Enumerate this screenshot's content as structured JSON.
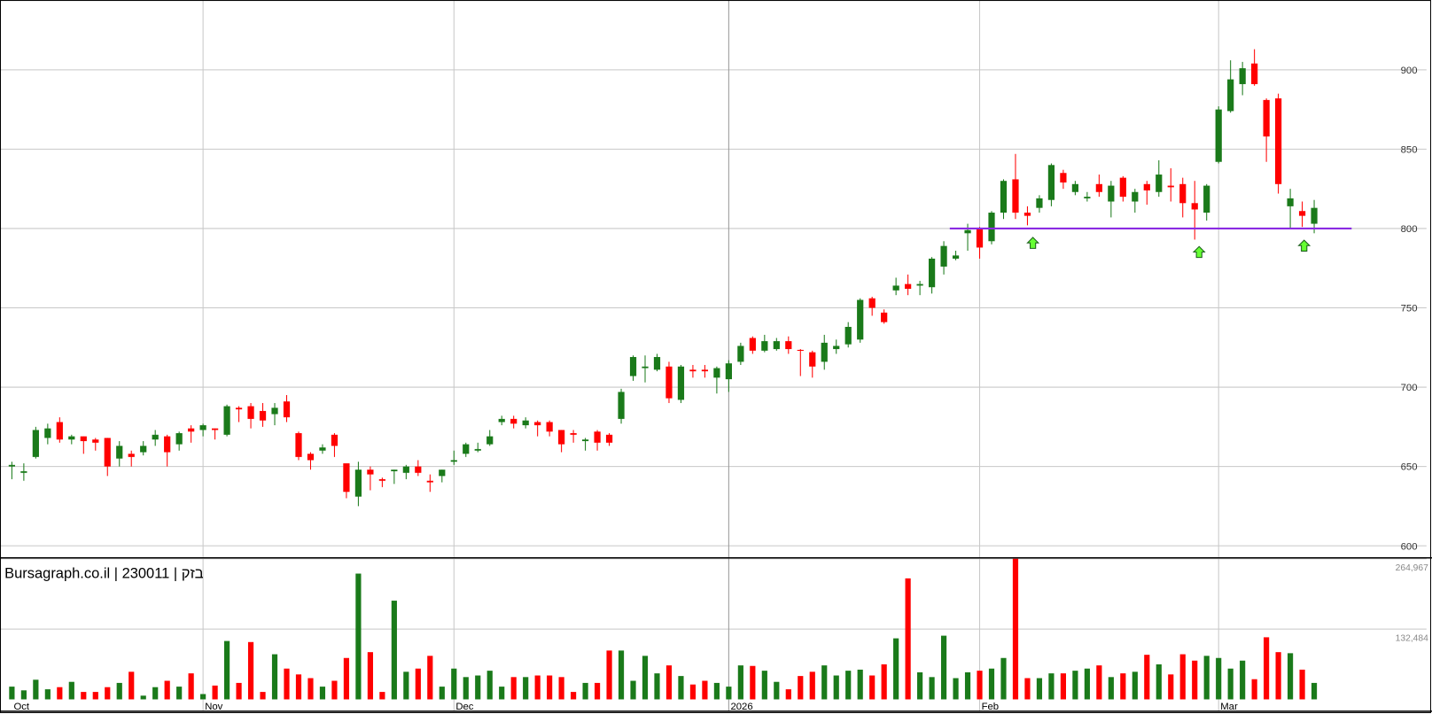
{
  "chart_data": [
    {
      "type": "candlestick",
      "categories": [
        "Oct",
        null,
        null,
        null,
        null,
        null,
        null,
        null,
        null,
        null,
        null,
        null,
        null,
        null,
        null,
        null,
        "Nov",
        null,
        null,
        null,
        null,
        null,
        null,
        null,
        null,
        null,
        null,
        null,
        null,
        null,
        null,
        null,
        null,
        null,
        null,
        null,
        null,
        "Dec",
        null,
        null,
        null,
        null,
        null,
        null,
        null,
        null,
        null,
        null,
        null,
        null,
        null,
        null,
        null,
        null,
        null,
        null,
        null,
        null,
        null,
        null,
        "2026",
        null,
        null,
        null,
        null,
        null,
        null,
        null,
        null,
        null,
        null,
        null,
        null,
        null,
        null,
        null,
        null,
        null,
        null,
        null,
        null,
        "Feb",
        null,
        null,
        null,
        null,
        null,
        null,
        null,
        null,
        null,
        null,
        null,
        null,
        null,
        null,
        null,
        null,
        null,
        null,
        null,
        "Mar",
        null,
        null,
        null,
        null,
        null,
        null,
        null,
        null
      ],
      "open": [
        650,
        646,
        656,
        668,
        678,
        667,
        669,
        667,
        668,
        655,
        658,
        659,
        667,
        669,
        664,
        674,
        673,
        674,
        670,
        687,
        688,
        685,
        683,
        691,
        671,
        658,
        660,
        670,
        652,
        631,
        648,
        642,
        647,
        646,
        650,
        641,
        644,
        653,
        658,
        660,
        664,
        678,
        680,
        676,
        678,
        678,
        673,
        671,
        666,
        672,
        670,
        680,
        707,
        712,
        711,
        713,
        692,
        711,
        711,
        706,
        705,
        716,
        731,
        723,
        724,
        729,
        723.5,
        722,
        716,
        724,
        727,
        730,
        756,
        747,
        761,
        765,
        764,
        763,
        776,
        781,
        797,
        800,
        792,
        810,
        831,
        810,
        813,
        818,
        835,
        823,
        819,
        828,
        817,
        832,
        817,
        828,
        823,
        827,
        828,
        816,
        810,
        842,
        874,
        891,
        904,
        881,
        882,
        814,
        811,
        803
      ],
      "high": [
        653,
        652,
        675,
        677,
        681,
        670,
        669,
        668,
        668,
        666,
        660,
        666,
        673,
        670,
        672,
        676,
        677,
        674,
        689,
        688,
        690,
        690,
        690,
        695,
        672,
        659,
        664,
        671,
        652,
        653,
        650,
        643,
        648,
        651,
        654,
        645,
        648,
        660,
        665,
        665,
        673,
        682,
        682,
        681,
        679,
        679,
        673,
        673,
        668,
        673,
        671,
        699,
        720,
        720,
        721,
        716,
        714,
        714,
        714,
        713,
        717,
        728,
        732,
        733,
        731,
        732,
        724,
        723,
        733,
        730,
        741,
        756,
        757,
        749,
        769,
        771,
        767,
        782,
        792,
        786,
        803,
        801,
        811,
        831,
        847,
        814,
        821,
        841,
        837,
        830,
        823,
        834,
        830,
        833,
        825,
        830,
        843,
        838,
        832,
        830,
        828,
        877,
        906,
        905,
        913,
        882,
        885,
        825,
        817,
        818
      ],
      "low": [
        642,
        641,
        655,
        664,
        665,
        664,
        658,
        660,
        644,
        650,
        650,
        657,
        663,
        650,
        660,
        665,
        669,
        667,
        669,
        678,
        674,
        675,
        676,
        678,
        654,
        648,
        658,
        656,
        630,
        625,
        635,
        637,
        639,
        642,
        644,
        634,
        640,
        651,
        656,
        659,
        663,
        676,
        674,
        674,
        669,
        669,
        659,
        665,
        660,
        660,
        663,
        677,
        704,
        703,
        710,
        690,
        690,
        706,
        706,
        696,
        697,
        714,
        721,
        722,
        723,
        721,
        707,
        706,
        711,
        721,
        725,
        728,
        745,
        740,
        758,
        758,
        758,
        759,
        771,
        780,
        786,
        781,
        790,
        806,
        806,
        802,
        810,
        814,
        825,
        821,
        817,
        820,
        807,
        817,
        810,
        815,
        820,
        817,
        807,
        793,
        805,
        841,
        873,
        884,
        890,
        842,
        822,
        800,
        801,
        797
      ],
      "close": [
        651,
        647,
        673,
        674,
        667,
        669,
        666,
        665,
        650,
        663,
        656,
        663,
        670,
        659,
        671,
        672,
        676,
        673,
        688,
        686,
        680,
        679,
        687,
        681,
        656,
        654,
        662,
        663,
        634,
        648,
        645,
        641,
        648,
        650,
        646,
        640,
        648,
        654,
        664,
        661,
        669,
        680,
        677,
        679,
        676,
        672,
        664,
        670,
        667,
        665,
        665,
        697,
        719,
        713,
        719,
        693,
        713,
        710,
        710,
        712,
        715,
        726,
        723,
        729,
        729,
        724,
        723,
        713,
        728,
        726,
        738,
        755,
        750,
        741,
        764,
        762,
        765,
        781,
        789,
        783,
        799,
        788,
        810,
        830,
        810,
        808,
        819,
        840,
        829,
        828,
        820,
        823,
        827,
        820,
        823,
        824,
        834,
        826,
        816,
        812,
        827,
        875,
        894,
        901,
        891,
        858,
        828,
        819,
        808,
        813
      ],
      "up_color": "#1a7a1a",
      "down_color": "#ff0000",
      "ylim": [
        593,
        944
      ],
      "yticks": [
        600,
        650,
        700,
        750,
        800,
        850,
        900
      ],
      "grid": true,
      "hline": 800,
      "hline_color": "#8a2be2"
    },
    {
      "type": "bar",
      "title": "Bursagraph.co.il | 230011 | בזק",
      "values": [
        24000,
        17000,
        37000,
        19000,
        23000,
        33000,
        14000,
        14000,
        23000,
        31000,
        52000,
        7000,
        23000,
        35000,
        24000,
        49000,
        10000,
        26000,
        110000,
        31000,
        108000,
        14000,
        85000,
        58000,
        47000,
        40000,
        24000,
        35000,
        78000,
        237000,
        89000,
        14000,
        186000,
        52000,
        58000,
        82000,
        24000,
        58000,
        42000,
        45000,
        54000,
        24000,
        42000,
        42000,
        45000,
        45000,
        42000,
        14000,
        31000,
        31000,
        92000,
        92000,
        35000,
        82000,
        49000,
        64000,
        44000,
        28000,
        35000,
        31000,
        24000,
        64000,
        63000,
        54000,
        33000,
        19000,
        44000,
        52000,
        64000,
        45000,
        54000,
        56000,
        45000,
        66000,
        115000,
        228000,
        51000,
        42000,
        120000,
        40000,
        51000,
        54000,
        58000,
        78000,
        264967,
        40000,
        40000,
        49000,
        49000,
        54000,
        58000,
        64000,
        42000,
        49000,
        52000,
        84000,
        66000,
        47000,
        85000,
        73000,
        82000,
        78000,
        58000,
        73000,
        38000,
        117000,
        89000,
        87000,
        56000,
        31000
      ],
      "ylim": [
        0,
        264967
      ],
      "yticks": [
        {
          "value": 132484,
          "label": "132,484"
        },
        {
          "value": 264967,
          "label": "264,967"
        }
      ],
      "grid": true
    }
  ]
}
